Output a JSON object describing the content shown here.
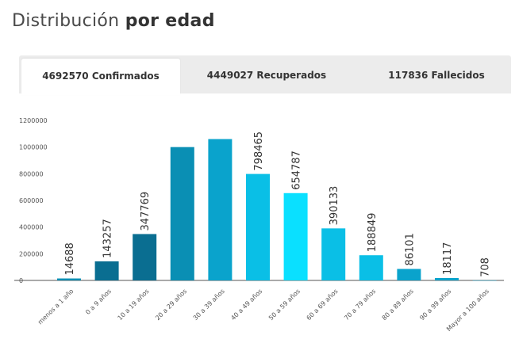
{
  "title": {
    "regular": "Distribución",
    "bold": "por edad"
  },
  "tabs": [
    {
      "label": "4692570 Confirmados",
      "active": true
    },
    {
      "label": "4449027 Recuperados",
      "active": false
    },
    {
      "label": "117836 Fallecidos",
      "active": false
    }
  ],
  "chart_data": {
    "type": "bar",
    "categories": [
      "menos a 1 año",
      "0 a 9 años",
      "10 a 19 años",
      "20 a 29 años",
      "30 a 39 años",
      "40 a 49 años",
      "50 a 59 años",
      "60 a 69 años",
      "70 a 79 años",
      "80 a 89 años",
      "90 a 99 años",
      "Mayor a 100 años"
    ],
    "values": [
      14688,
      143257,
      347769,
      1000000,
      1060000,
      798465,
      654787,
      390133,
      188849,
      86101,
      18117,
      708
    ],
    "value_labels": [
      "14688",
      "143257",
      "347769",
      "",
      "",
      "798465",
      "654787",
      "390133",
      "188849",
      "86101",
      "18117",
      "708"
    ],
    "colors": [
      "#0a8fb4",
      "#0a6e91",
      "#0a6e91",
      "#0a8fb4",
      "#0aa3cc",
      "#0abfe6",
      "#0ae0ff",
      "#0abfe6",
      "#0abfe6",
      "#0aa3cc",
      "#0aa3cc",
      "#0a8fb4"
    ],
    "yticks": [
      "1200000",
      "1000000",
      "800000",
      "600000",
      "400000",
      "200000",
      "0"
    ],
    "ylim": [
      0,
      1200000
    ],
    "xlabel": "",
    "ylabel": "",
    "grid": false
  }
}
